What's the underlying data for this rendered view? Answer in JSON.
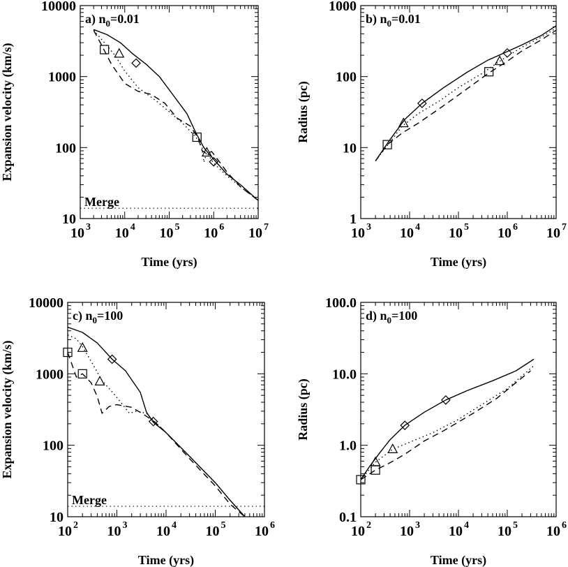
{
  "chart_data": [
    {
      "type": "line",
      "panel_label": "a) n",
      "panel_sub": "0",
      "panel_rest": "=0.01",
      "xlabel": "Time (yrs)",
      "ylabel": "Expansion velocity (km/s)",
      "xscale": "log",
      "yscale": "log",
      "xlim": [
        1000,
        10000000
      ],
      "ylim": [
        10,
        10000
      ],
      "xticks": [
        3,
        4,
        5,
        6,
        7
      ],
      "yticks": [
        "10",
        "100",
        "1000",
        "10000"
      ],
      "annotation": {
        "text": "Merge",
        "y": 14
      },
      "series": [
        {
          "style": "solid",
          "x": [
            2000,
            4000,
            8000,
            15000,
            30000,
            60000,
            120000,
            250000,
            400000,
            600000,
            800000,
            1200000,
            2000000,
            4000000,
            10000000
          ],
          "y": [
            4600,
            3900,
            3000,
            2100,
            1500,
            1000,
            560,
            300,
            160,
            100,
            80,
            60,
            42,
            30,
            18
          ]
        },
        {
          "style": "dotted",
          "x": [
            2000,
            3500,
            6000,
            10000,
            20000,
            50000,
            100000,
            200000,
            400000,
            550000,
            600000,
            700000,
            1000000,
            2000000,
            4000000,
            10000000
          ],
          "y": [
            4500,
            3000,
            2000,
            1200,
            700,
            460,
            320,
            220,
            140,
            100,
            62,
            85,
            60,
            40,
            28,
            18
          ]
        },
        {
          "style": "dashed",
          "x": [
            2000,
            3000,
            5000,
            10000,
            20000,
            40000,
            80000,
            150000,
            300000,
            450000,
            550000,
            700000,
            900000,
            1300000,
            2000000,
            4000000,
            10000000
          ],
          "y": [
            4500,
            2800,
            1500,
            800,
            620,
            560,
            420,
            260,
            200,
            135,
            90,
            82,
            88,
            65,
            45,
            28,
            18
          ]
        }
      ],
      "markers": [
        {
          "shape": "diamond",
          "x": 18000,
          "y": 1550
        },
        {
          "shape": "triangle",
          "x": 7500,
          "y": 2100
        },
        {
          "shape": "square",
          "x": 3500,
          "y": 2400
        },
        {
          "shape": "diamond",
          "x": 1000000,
          "y": 63
        },
        {
          "shape": "triangle",
          "x": 700000,
          "y": 85
        },
        {
          "shape": "square",
          "x": 420000,
          "y": 140
        }
      ]
    },
    {
      "type": "line",
      "panel_label": "b) n",
      "panel_sub": "0",
      "panel_rest": "=0.01",
      "xlabel": "Time (yrs)",
      "ylabel": "Radius (pc)",
      "xscale": "log",
      "yscale": "log",
      "xlim": [
        1000,
        10000000
      ],
      "ylim": [
        1,
        1000
      ],
      "xticks": [
        3,
        4,
        5,
        6,
        7
      ],
      "yticks": [
        "1",
        "10",
        "100",
        "1000"
      ],
      "series": [
        {
          "style": "solid",
          "x": [
            2000,
            4000,
            8000,
            18000,
            50000,
            150000,
            400000,
            800000,
            2000000,
            5000000,
            10000000
          ],
          "y": [
            6.5,
            13,
            25,
            42,
            70,
            115,
            170,
            210,
            280,
            380,
            520
          ]
        },
        {
          "style": "dotted",
          "x": [
            2000,
            4000,
            7000,
            15000,
            40000,
            100000,
            300000,
            700000,
            2000000,
            5000000,
            10000000
          ],
          "y": [
            6.5,
            12,
            20,
            30,
            45,
            70,
            110,
            165,
            260,
            360,
            480
          ]
        },
        {
          "style": "dashed",
          "x": [
            2000,
            3500,
            7000,
            15000,
            40000,
            120000,
            400000,
            1000000,
            2000000,
            5000000,
            10000000
          ],
          "y": [
            6.5,
            11,
            16,
            22,
            35,
            60,
            110,
            165,
            230,
            330,
            450
          ]
        }
      ],
      "markers": [
        {
          "shape": "diamond",
          "x": 18000,
          "y": 42
        },
        {
          "shape": "triangle",
          "x": 7500,
          "y": 22
        },
        {
          "shape": "square",
          "x": 3500,
          "y": 11
        },
        {
          "shape": "diamond",
          "x": 1000000,
          "y": 215
        },
        {
          "shape": "triangle",
          "x": 700000,
          "y": 165
        },
        {
          "shape": "square",
          "x": 420000,
          "y": 117
        }
      ]
    },
    {
      "type": "line",
      "panel_label": "c) n",
      "panel_sub": "0",
      "panel_rest": "=100",
      "xlabel": "Time (yrs)",
      "ylabel": "Expansion velocity (km/s)",
      "xscale": "log",
      "yscale": "log",
      "xlim": [
        100,
        1000000
      ],
      "ylim": [
        10,
        10000
      ],
      "xticks": [
        2,
        3,
        4,
        5,
        6
      ],
      "yticks": [
        "10",
        "100",
        "1000",
        "10000"
      ],
      "annotation": {
        "text": "Merge",
        "y": 14
      },
      "series": [
        {
          "style": "solid",
          "x": [
            100,
            200,
            400,
            800,
            1500,
            3000,
            4000,
            5500,
            10000,
            30000,
            100000,
            200000,
            400000
          ],
          "y": [
            4500,
            3800,
            2700,
            1600,
            1100,
            550,
            290,
            210,
            150,
            70,
            30,
            17,
            10
          ]
        },
        {
          "style": "dotted",
          "x": [
            100,
            150,
            200,
            300,
            500,
            800,
            1200,
            1800,
            2500,
            4000,
            6000,
            10000,
            30000,
            100000,
            200000,
            400000
          ],
          "y": [
            3500,
            3100,
            2400,
            1500,
            800,
            560,
            400,
            280,
            300,
            280,
            210,
            150,
            70,
            30,
            17,
            10
          ]
        },
        {
          "style": "dashed",
          "x": [
            100,
            120,
            150,
            200,
            300,
            400,
            500,
            700,
            1000,
            2000,
            3500,
            6000,
            10000,
            30000,
            100000,
            200000,
            400000
          ],
          "y": [
            2000,
            1400,
            900,
            1000,
            750,
            480,
            280,
            350,
            370,
            340,
            270,
            210,
            150,
            65,
            27,
            15,
            10
          ]
        }
      ],
      "markers": [
        {
          "shape": "diamond",
          "x": 800,
          "y": 1600
        },
        {
          "shape": "triangle",
          "x": 200,
          "y": 2300
        },
        {
          "shape": "square",
          "x": 100,
          "y": 2000
        },
        {
          "shape": "square",
          "x": 200,
          "y": 1000
        },
        {
          "shape": "triangle",
          "x": 450,
          "y": 780
        },
        {
          "shape": "diamond",
          "x": 5500,
          "y": 215
        }
      ]
    },
    {
      "type": "line",
      "panel_label": "d) n",
      "panel_sub": "0",
      "panel_rest": "=100",
      "xlabel": "Time (yrs)",
      "ylabel": "Radius (pc)",
      "xscale": "log",
      "yscale": "log",
      "xlim": [
        100,
        1000000
      ],
      "ylim": [
        0.1,
        100
      ],
      "xticks": [
        2,
        3,
        4,
        5,
        6
      ],
      "yticks": [
        "0.1",
        "1.0",
        "10.0",
        "100.0"
      ],
      "series": [
        {
          "style": "solid",
          "x": [
            100,
            150,
            250,
            400,
            800,
            2000,
            5500,
            15000,
            50000,
            150000,
            350000
          ],
          "y": [
            0.33,
            0.5,
            0.8,
            1.2,
            1.9,
            2.9,
            4.3,
            5.8,
            8.0,
            11,
            16
          ]
        },
        {
          "style": "dotted",
          "x": [
            100,
            200,
            450,
            1000,
            3000,
            10000,
            30000,
            100000,
            350000
          ],
          "y": [
            0.33,
            0.58,
            0.88,
            1.1,
            1.5,
            2.3,
            3.7,
            6.2,
            13
          ]
        },
        {
          "style": "dashed",
          "x": [
            100,
            200,
            400,
            800,
            2000,
            5000,
            20000,
            60000,
            150000,
            300000
          ],
          "y": [
            0.33,
            0.45,
            0.57,
            0.75,
            1.15,
            1.6,
            2.8,
            4.5,
            7.5,
            11
          ]
        }
      ],
      "markers": [
        {
          "shape": "diamond",
          "x": 800,
          "y": 1.9
        },
        {
          "shape": "diamond",
          "x": 5500,
          "y": 4.3
        },
        {
          "shape": "triangle",
          "x": 200,
          "y": 0.58
        },
        {
          "shape": "triangle",
          "x": 450,
          "y": 0.88
        },
        {
          "shape": "square",
          "x": 100,
          "y": 0.33
        },
        {
          "shape": "square",
          "x": 200,
          "y": 0.45
        }
      ]
    }
  ]
}
